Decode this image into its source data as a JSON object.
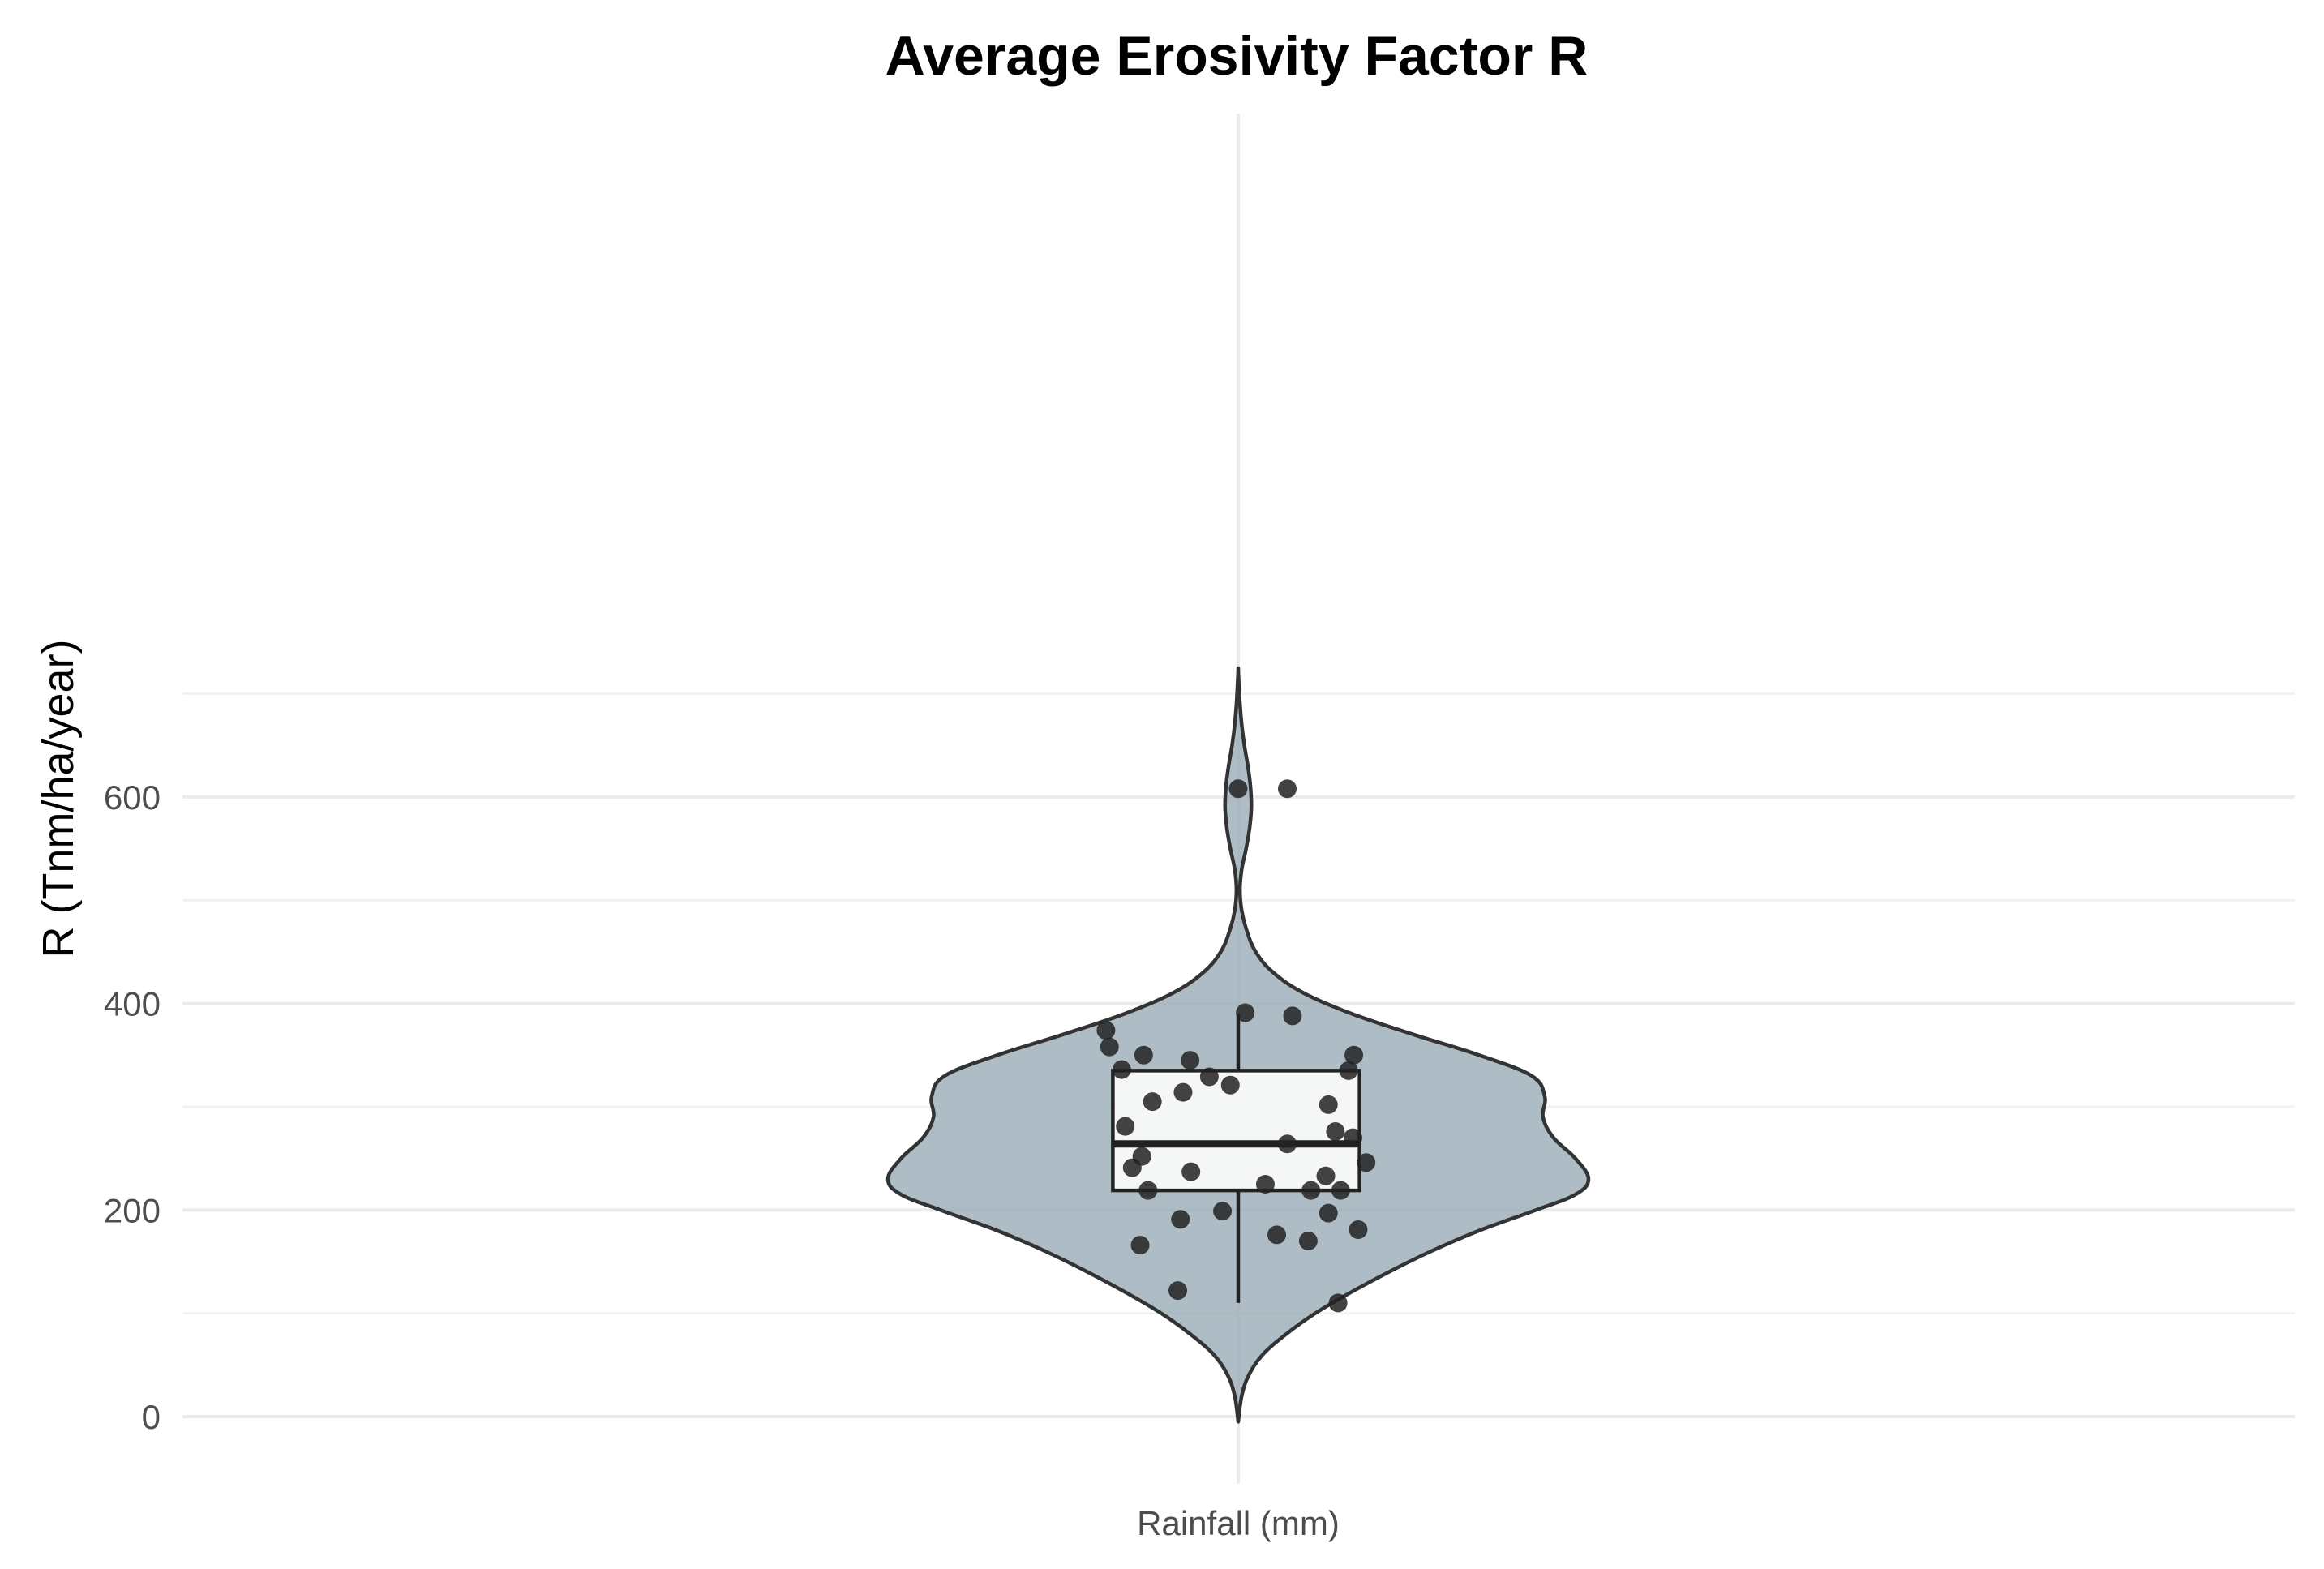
{
  "chart_data": {
    "type": "violin",
    "title": "Average Erosivity Factor R",
    "xlabel": "",
    "ylabel": "R (Tnm/ha/year)",
    "categories": [
      "Rainfall (mm)"
    ],
    "ylim": [
      -10,
      760
    ],
    "y_ticks": [
      0,
      200,
      400,
      600
    ],
    "y_minor_gridlines": [
      100,
      300,
      500,
      700
    ],
    "grid": true,
    "legend": "none",
    "colors": {
      "violin_fill": "#97abb5",
      "violin_stroke": "#333333",
      "box_fill": "#f5f7f6",
      "box_stroke": "#222222",
      "point": "#222222",
      "grid_major": "#ebebeb",
      "grid_minor": "#f2f2f2"
    },
    "violin_range": [
      -5,
      723
    ],
    "violin_density_profile": [
      {
        "y": -5,
        "halfwidth": 0.0
      },
      {
        "y": 20,
        "halfwidth": 0.004
      },
      {
        "y": 40,
        "halfwidth": 0.012
      },
      {
        "y": 60,
        "halfwidth": 0.028
      },
      {
        "y": 80,
        "halfwidth": 0.055
      },
      {
        "y": 100,
        "halfwidth": 0.088
      },
      {
        "y": 120,
        "halfwidth": 0.128
      },
      {
        "y": 140,
        "halfwidth": 0.172
      },
      {
        "y": 160,
        "halfwidth": 0.22
      },
      {
        "y": 180,
        "halfwidth": 0.275
      },
      {
        "y": 200,
        "halfwidth": 0.34
      },
      {
        "y": 215,
        "halfwidth": 0.385
      },
      {
        "y": 230,
        "halfwidth": 0.4
      },
      {
        "y": 250,
        "halfwidth": 0.385
      },
      {
        "y": 270,
        "halfwidth": 0.36
      },
      {
        "y": 290,
        "halfwidth": 0.348
      },
      {
        "y": 310,
        "halfwidth": 0.35
      },
      {
        "y": 330,
        "halfwidth": 0.335
      },
      {
        "y": 350,
        "halfwidth": 0.275
      },
      {
        "y": 370,
        "halfwidth": 0.2
      },
      {
        "y": 390,
        "halfwidth": 0.13
      },
      {
        "y": 410,
        "halfwidth": 0.075
      },
      {
        "y": 430,
        "halfwidth": 0.04
      },
      {
        "y": 450,
        "halfwidth": 0.02
      },
      {
        "y": 470,
        "halfwidth": 0.01
      },
      {
        "y": 490,
        "halfwidth": 0.004
      },
      {
        "y": 510,
        "halfwidth": 0.002
      },
      {
        "y": 530,
        "halfwidth": 0.004
      },
      {
        "y": 550,
        "halfwidth": 0.009
      },
      {
        "y": 570,
        "halfwidth": 0.013
      },
      {
        "y": 590,
        "halfwidth": 0.015
      },
      {
        "y": 610,
        "halfwidth": 0.014
      },
      {
        "y": 630,
        "halfwidth": 0.011
      },
      {
        "y": 650,
        "halfwidth": 0.007
      },
      {
        "y": 670,
        "halfwidth": 0.004
      },
      {
        "y": 690,
        "halfwidth": 0.002
      },
      {
        "y": 710,
        "halfwidth": 0.0007
      },
      {
        "y": 723,
        "halfwidth": 0.0
      }
    ],
    "box": {
      "q1": 219,
      "median": 264,
      "q3": 335,
      "whisker_low": 110,
      "whisker_high": 390,
      "halfwidth": 0.12
    },
    "points": [
      {
        "x": 0.0,
        "y": 608
      },
      {
        "x": 0.056,
        "y": 608
      },
      {
        "x": 0.008,
        "y": 391
      },
      {
        "x": 0.062,
        "y": 388
      },
      {
        "x": -0.151,
        "y": 374
      },
      {
        "x": -0.147,
        "y": 358
      },
      {
        "x": -0.108,
        "y": 350
      },
      {
        "x": -0.055,
        "y": 345
      },
      {
        "x": -0.133,
        "y": 336
      },
      {
        "x": -0.033,
        "y": 329
      },
      {
        "x": -0.009,
        "y": 321
      },
      {
        "x": -0.063,
        "y": 314
      },
      {
        "x": -0.098,
        "y": 305
      },
      {
        "x": 0.132,
        "y": 350
      },
      {
        "x": 0.126,
        "y": 335
      },
      {
        "x": 0.103,
        "y": 302
      },
      {
        "x": -0.129,
        "y": 281
      },
      {
        "x": 0.111,
        "y": 276
      },
      {
        "x": 0.131,
        "y": 270
      },
      {
        "x": 0.056,
        "y": 264
      },
      {
        "x": -0.11,
        "y": 252
      },
      {
        "x": 0.146,
        "y": 246
      },
      {
        "x": -0.121,
        "y": 241
      },
      {
        "x": -0.054,
        "y": 237
      },
      {
        "x": 0.1,
        "y": 233
      },
      {
        "x": 0.031,
        "y": 225
      },
      {
        "x": -0.103,
        "y": 219
      },
      {
        "x": 0.083,
        "y": 219
      },
      {
        "x": 0.117,
        "y": 219
      },
      {
        "x": -0.018,
        "y": 199
      },
      {
        "x": 0.103,
        "y": 197
      },
      {
        "x": -0.066,
        "y": 191
      },
      {
        "x": 0.137,
        "y": 181
      },
      {
        "x": 0.044,
        "y": 176
      },
      {
        "x": 0.08,
        "y": 170
      },
      {
        "x": -0.112,
        "y": 166
      },
      {
        "x": -0.069,
        "y": 122
      },
      {
        "x": 0.114,
        "y": 110
      }
    ]
  }
}
